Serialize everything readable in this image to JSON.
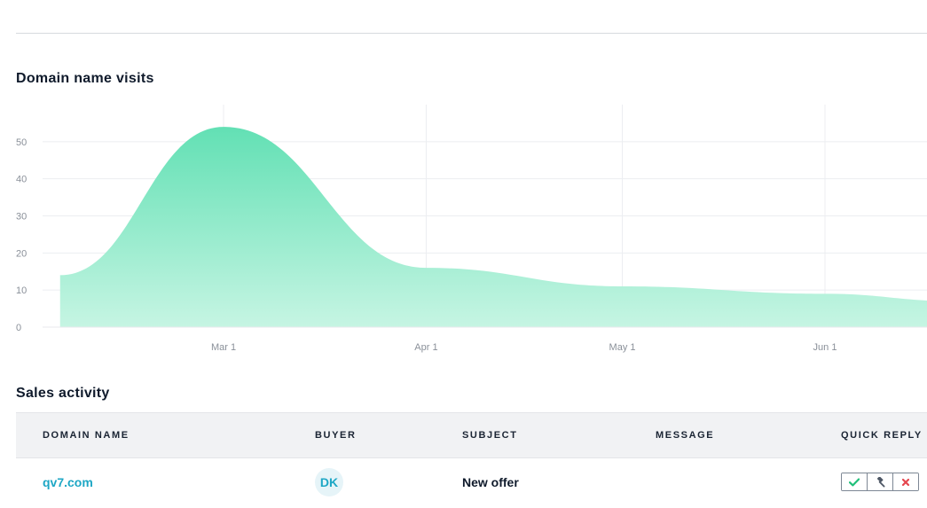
{
  "chart_section": {
    "title": "Domain name visits"
  },
  "chart_data": {
    "type": "area",
    "title": "Domain name visits",
    "xlabel": "",
    "ylabel": "",
    "x_tick_labels": [
      "Mar 1",
      "Apr 1",
      "May 1",
      "Jun 1"
    ],
    "y_tick_labels": [
      "0",
      "10",
      "20",
      "30",
      "40",
      "50"
    ],
    "ylim": [
      0,
      60
    ],
    "grid": true,
    "points": [
      {
        "x": "Feb 4",
        "y": 14
      },
      {
        "x": "Mar 1",
        "y": 54
      },
      {
        "x": "Apr 1",
        "y": 16
      },
      {
        "x": "May 1",
        "y": 11
      },
      {
        "x": "Jun 1",
        "y": 9
      },
      {
        "x": "Jun 21",
        "y": 7
      }
    ],
    "fill_color_top": "#62e0b4",
    "fill_color_bottom": "#c6f5e3"
  },
  "sales_section": {
    "title": "Sales activity",
    "columns": {
      "domain_name": "DOMAIN NAME",
      "buyer": "BUYER",
      "subject": "SUBJECT",
      "message": "MESSAGE",
      "quick_reply": "QUICK REPLY"
    },
    "rows": [
      {
        "domain": "qv7.com",
        "buyer_initials": "DK",
        "subject": "New offer",
        "message": ""
      }
    ],
    "quick_reply_actions": {
      "accept_icon": "check-icon",
      "bid_icon": "gavel-icon",
      "decline_icon": "close-icon"
    }
  },
  "colors": {
    "accent": "#1ea7c5",
    "accept": "#21c07a",
    "decline": "#e5474f",
    "bid": "#4d5765"
  }
}
